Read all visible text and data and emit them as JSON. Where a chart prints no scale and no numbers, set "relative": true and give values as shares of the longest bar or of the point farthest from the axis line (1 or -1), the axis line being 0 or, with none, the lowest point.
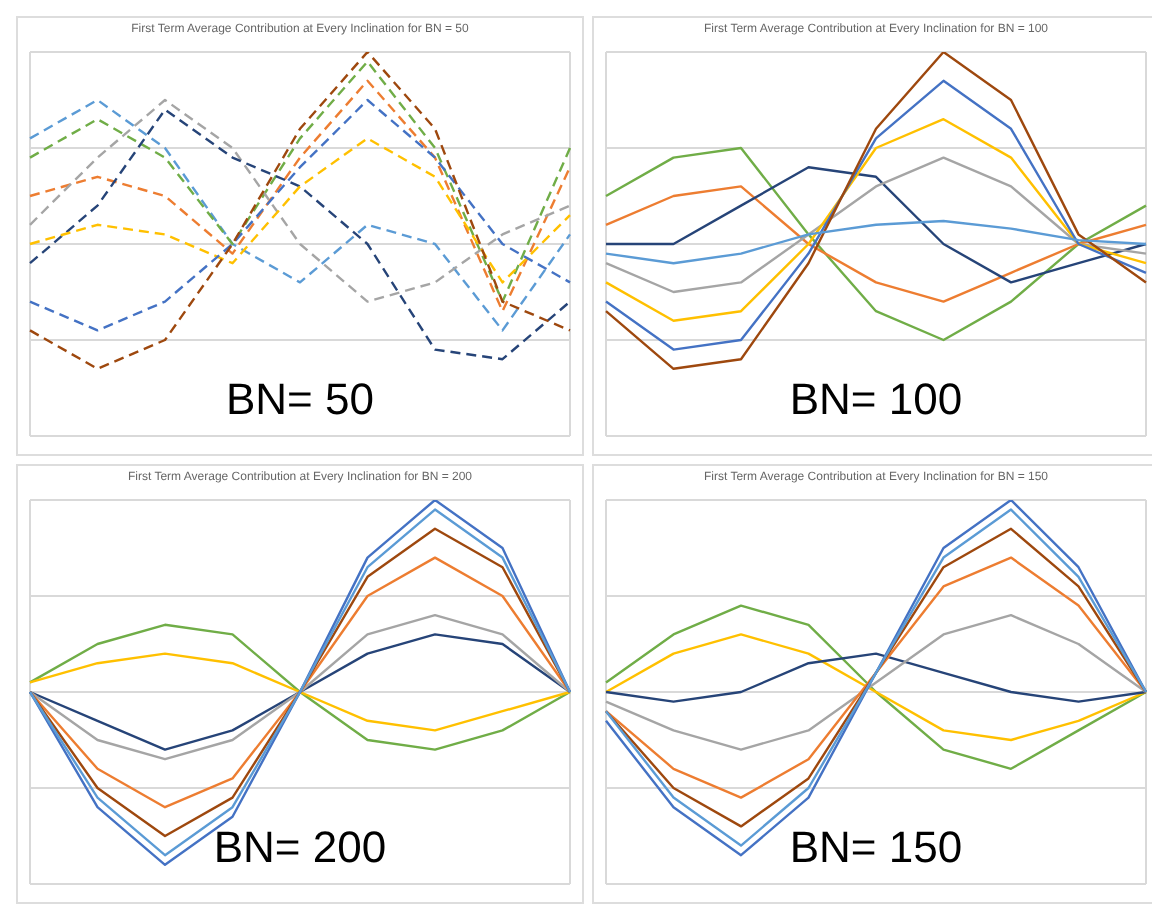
{
  "chart_data": [
    {
      "type": "line",
      "title": "First Term Average Contribution at Every Inclination for BN = 50",
      "annotations": [
        "BN= 50"
      ],
      "relative": true,
      "grid": true,
      "line_style": "dashed",
      "marker": "none",
      "categories": [
        null,
        null,
        null,
        null,
        null,
        null,
        null,
        null,
        null
      ],
      "series": [
        {
          "color": "#5b9bd5",
          "values": [
            0.55,
            0.75,
            0.5,
            0.0,
            -0.2,
            0.1,
            0.0,
            -0.45,
            0.05
          ]
        },
        {
          "color": "#70ad47",
          "values": [
            0.45,
            0.65,
            0.45,
            0.0,
            0.55,
            0.95,
            0.5,
            -0.3,
            0.5
          ]
        },
        {
          "color": "#ed7d31",
          "values": [
            0.25,
            0.35,
            0.25,
            -0.05,
            0.45,
            0.85,
            0.45,
            -0.35,
            0.4
          ]
        },
        {
          "color": "#a5a5a5",
          "values": [
            0.1,
            0.45,
            0.75,
            0.5,
            0.0,
            -0.3,
            -0.2,
            0.05,
            0.2
          ]
        },
        {
          "color": "#264478",
          "values": [
            -0.1,
            0.2,
            0.7,
            0.45,
            0.3,
            0.0,
            -0.55,
            -0.6,
            -0.3
          ]
        },
        {
          "color": "#ffc000",
          "values": [
            0.0,
            0.1,
            0.05,
            -0.1,
            0.3,
            0.55,
            0.35,
            -0.2,
            0.15
          ]
        },
        {
          "color": "#4472c4",
          "values": [
            -0.3,
            -0.45,
            -0.3,
            0.0,
            0.4,
            0.75,
            0.45,
            0.0,
            -0.2
          ]
        },
        {
          "color": "#9e480e",
          "values": [
            -0.45,
            -0.65,
            -0.5,
            0.0,
            0.6,
            1.0,
            0.6,
            -0.3,
            -0.45
          ]
        }
      ]
    },
    {
      "type": "line",
      "title": "First Term Average Contribution at Every Inclination for BN = 100",
      "annotations": [
        "BN= 100"
      ],
      "relative": true,
      "grid": true,
      "line_style": "solid",
      "marker": "none",
      "categories": [
        null,
        null,
        null,
        null,
        null,
        null,
        null,
        null,
        null
      ],
      "series": [
        {
          "color": "#70ad47",
          "values": [
            0.25,
            0.45,
            0.5,
            0.05,
            -0.35,
            -0.5,
            -0.3,
            0.0,
            0.2
          ]
        },
        {
          "color": "#ed7d31",
          "values": [
            0.1,
            0.25,
            0.3,
            0.0,
            -0.2,
            -0.3,
            -0.15,
            0.0,
            0.1
          ]
        },
        {
          "color": "#264478",
          "values": [
            0.0,
            0.0,
            0.2,
            0.4,
            0.35,
            0.0,
            -0.2,
            -0.1,
            0.0
          ]
        },
        {
          "color": "#a5a5a5",
          "values": [
            -0.1,
            -0.25,
            -0.2,
            0.05,
            0.3,
            0.45,
            0.3,
            0.0,
            -0.05
          ]
        },
        {
          "color": "#ffc000",
          "values": [
            -0.2,
            -0.4,
            -0.35,
            0.0,
            0.5,
            0.65,
            0.45,
            0.0,
            -0.1
          ]
        },
        {
          "color": "#4472c4",
          "values": [
            -0.3,
            -0.55,
            -0.5,
            -0.05,
            0.55,
            0.85,
            0.6,
            0.0,
            -0.15
          ]
        },
        {
          "color": "#9e480e",
          "values": [
            -0.35,
            -0.65,
            -0.6,
            -0.1,
            0.6,
            1.0,
            0.75,
            0.05,
            -0.2
          ]
        },
        {
          "color": "#5b9bd5",
          "values": [
            -0.05,
            -0.1,
            -0.05,
            0.05,
            0.1,
            0.12,
            0.08,
            0.02,
            0.0
          ]
        }
      ]
    },
    {
      "type": "line",
      "title": "First Term Average Contribution at Every Inclination for BN = 200",
      "annotations": [
        "BN= 200"
      ],
      "relative": true,
      "grid": true,
      "line_style": "solid",
      "marker": "none",
      "categories": [
        null,
        null,
        null,
        null,
        null,
        null,
        null,
        null,
        null
      ],
      "series": [
        {
          "color": "#70ad47",
          "values": [
            0.05,
            0.25,
            0.35,
            0.3,
            0.0,
            -0.25,
            -0.3,
            -0.2,
            0.0
          ]
        },
        {
          "color": "#ffc000",
          "values": [
            0.05,
            0.15,
            0.2,
            0.15,
            0.0,
            -0.15,
            -0.2,
            -0.1,
            0.0
          ]
        },
        {
          "color": "#264478",
          "values": [
            0.0,
            -0.15,
            -0.3,
            -0.2,
            0.0,
            0.2,
            0.3,
            0.25,
            0.0
          ]
        },
        {
          "color": "#a5a5a5",
          "values": [
            0.0,
            -0.25,
            -0.35,
            -0.25,
            0.0,
            0.3,
            0.4,
            0.3,
            0.0
          ]
        },
        {
          "color": "#ed7d31",
          "values": [
            0.0,
            -0.4,
            -0.6,
            -0.45,
            0.0,
            0.5,
            0.7,
            0.5,
            0.0
          ]
        },
        {
          "color": "#9e480e",
          "values": [
            0.0,
            -0.5,
            -0.75,
            -0.55,
            0.0,
            0.6,
            0.85,
            0.65,
            0.0
          ]
        },
        {
          "color": "#4472c4",
          "values": [
            0.0,
            -0.6,
            -0.9,
            -0.65,
            0.0,
            0.7,
            1.0,
            0.75,
            0.0
          ]
        },
        {
          "color": "#5b9bd5",
          "values": [
            0.0,
            -0.55,
            -0.85,
            -0.6,
            0.0,
            0.65,
            0.95,
            0.7,
            0.0
          ]
        }
      ]
    },
    {
      "type": "line",
      "title": "First Term Average Contribution at Every Inclination for BN = 150",
      "annotations": [
        "BN= 150"
      ],
      "relative": true,
      "grid": true,
      "line_style": "solid",
      "marker": "none",
      "categories": [
        null,
        null,
        null,
        null,
        null,
        null,
        null,
        null,
        null
      ],
      "series": [
        {
          "color": "#70ad47",
          "values": [
            0.05,
            0.3,
            0.45,
            0.35,
            0.0,
            -0.3,
            -0.4,
            -0.2,
            0.0
          ]
        },
        {
          "color": "#ffc000",
          "values": [
            0.0,
            0.2,
            0.3,
            0.2,
            0.0,
            -0.2,
            -0.25,
            -0.15,
            0.0
          ]
        },
        {
          "color": "#264478",
          "values": [
            0.0,
            -0.05,
            0.0,
            0.15,
            0.2,
            0.1,
            0.0,
            -0.05,
            0.0
          ]
        },
        {
          "color": "#a5a5a5",
          "values": [
            -0.05,
            -0.2,
            -0.3,
            -0.2,
            0.05,
            0.3,
            0.4,
            0.25,
            0.0
          ]
        },
        {
          "color": "#ed7d31",
          "values": [
            -0.1,
            -0.4,
            -0.55,
            -0.35,
            0.1,
            0.55,
            0.7,
            0.45,
            0.0
          ]
        },
        {
          "color": "#9e480e",
          "values": [
            -0.1,
            -0.5,
            -0.7,
            -0.45,
            0.1,
            0.65,
            0.85,
            0.55,
            0.0
          ]
        },
        {
          "color": "#4472c4",
          "values": [
            -0.15,
            -0.6,
            -0.85,
            -0.55,
            0.1,
            0.75,
            1.0,
            0.65,
            0.0
          ]
        },
        {
          "color": "#5b9bd5",
          "values": [
            -0.1,
            -0.55,
            -0.8,
            -0.5,
            0.1,
            0.7,
            0.95,
            0.6,
            0.0
          ]
        }
      ]
    }
  ]
}
